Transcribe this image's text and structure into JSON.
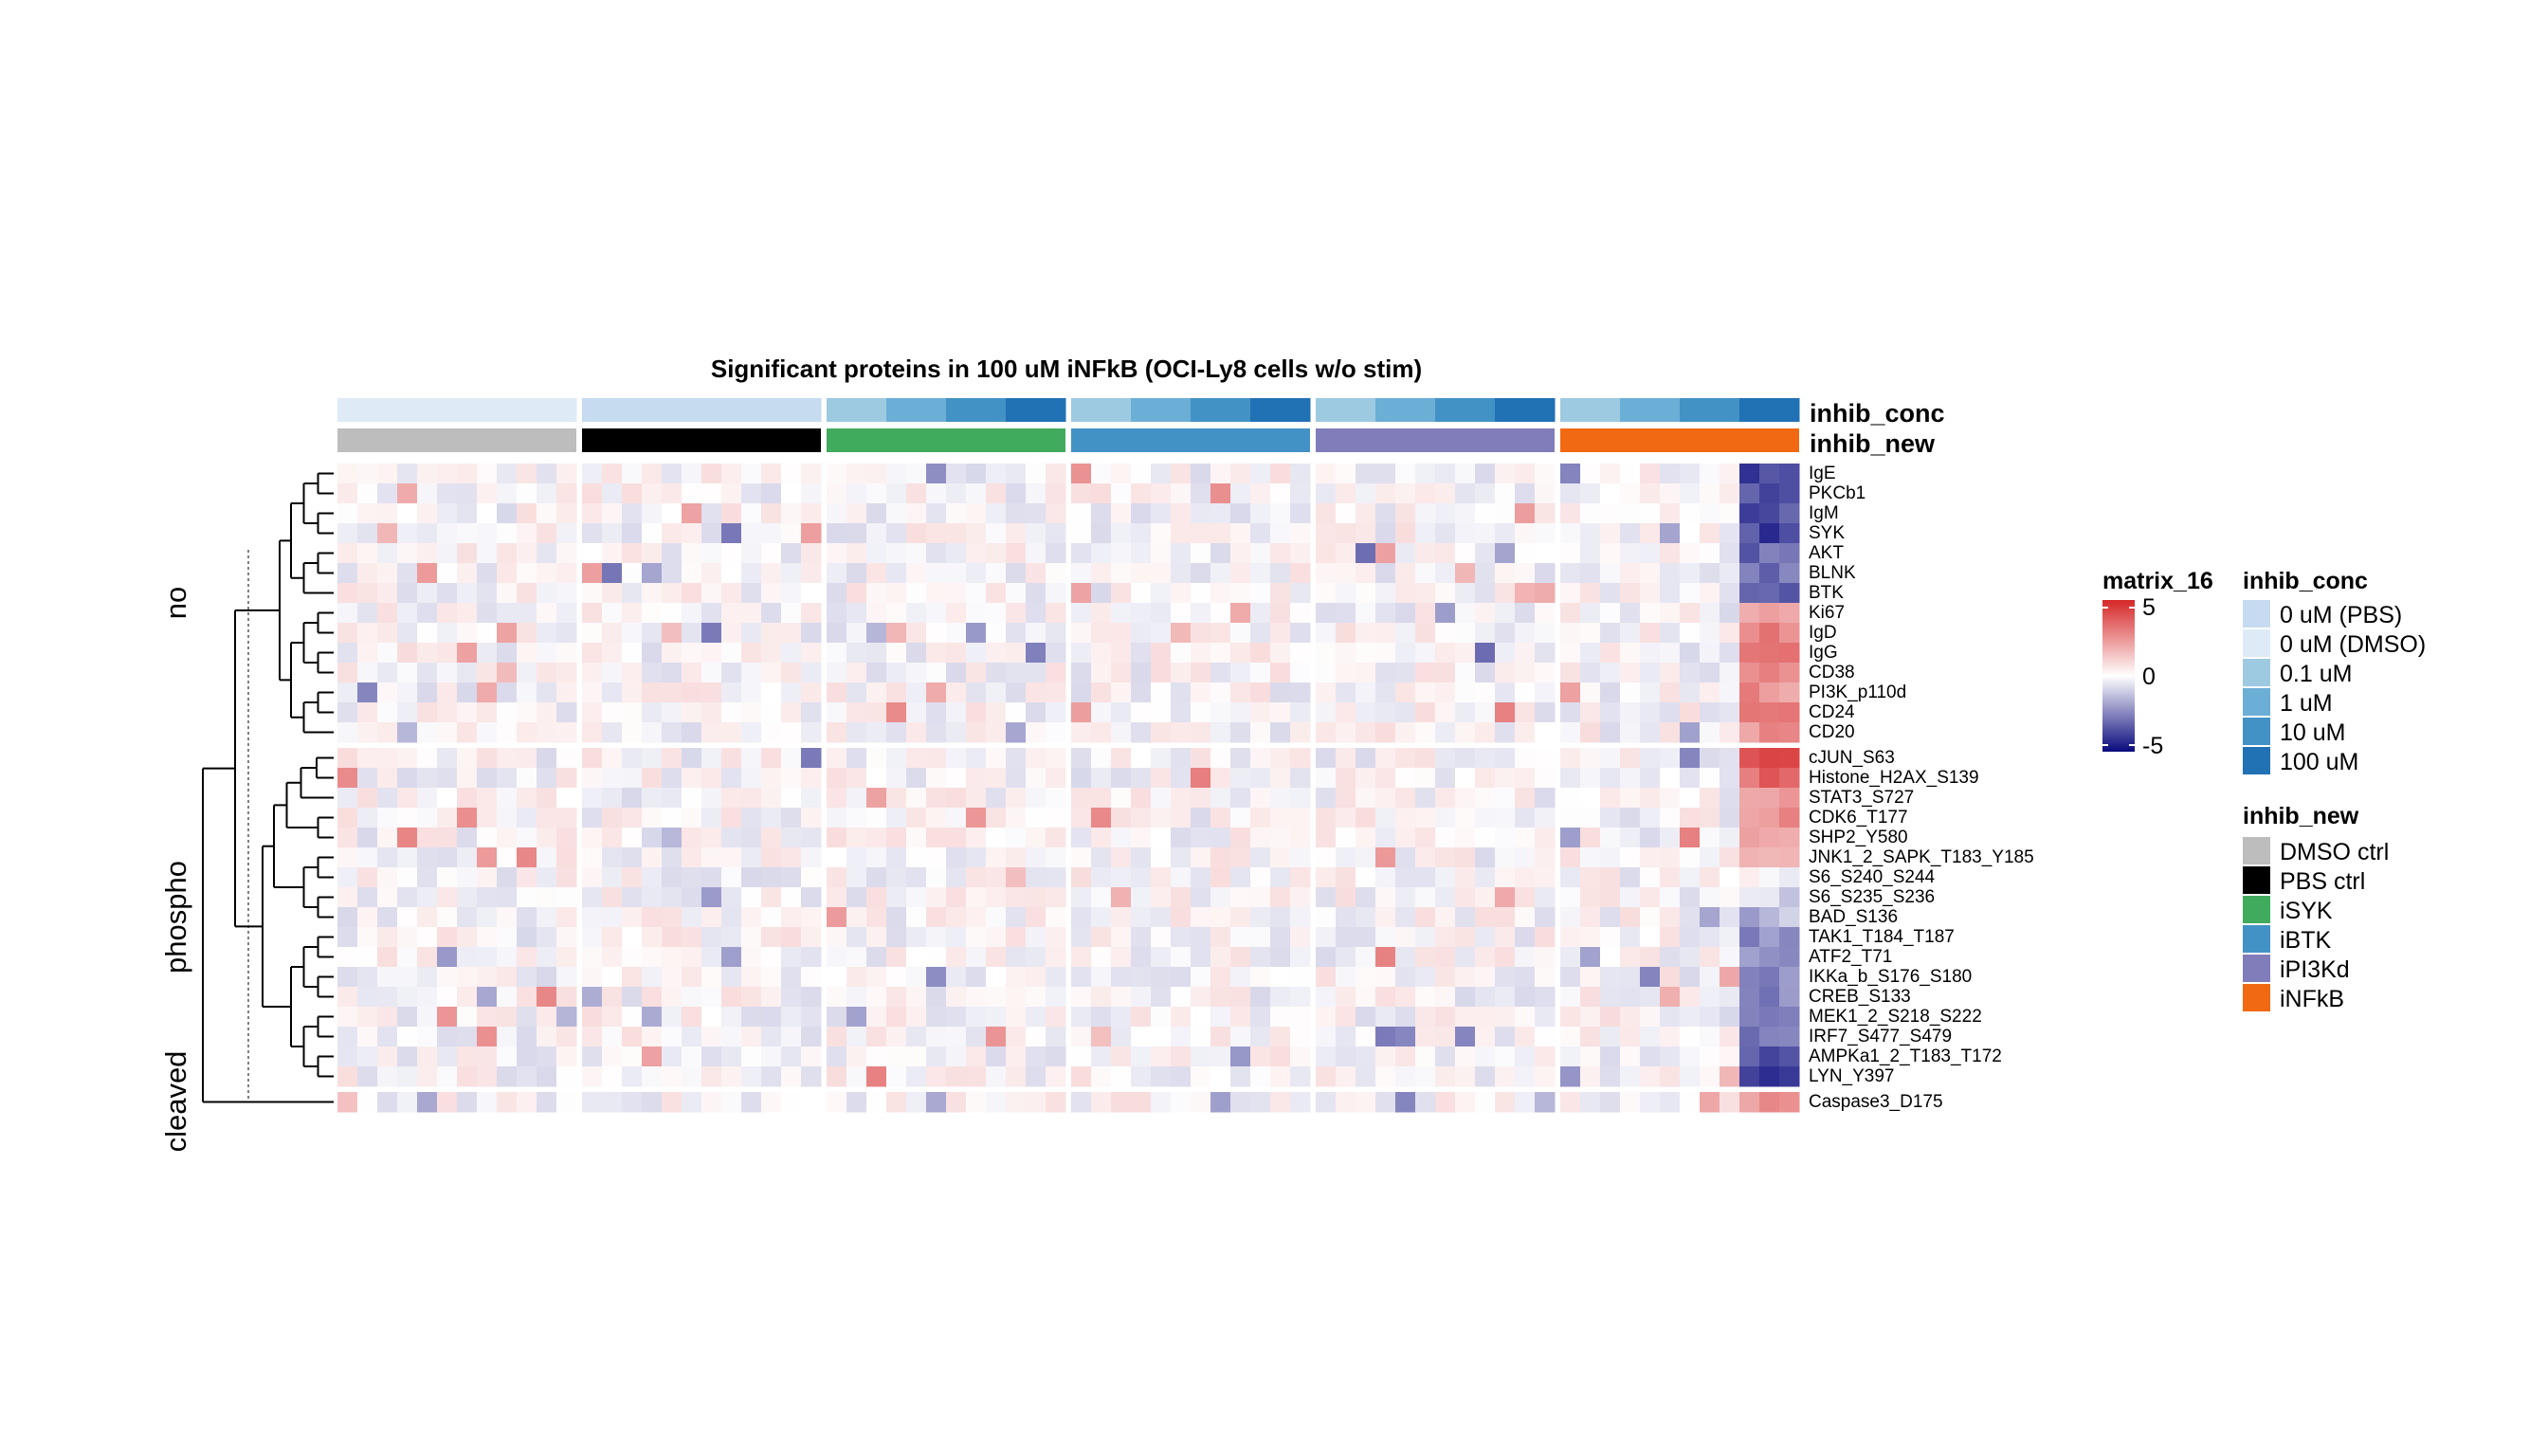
{
  "chart_data": {
    "type": "heatmap",
    "title": "Significant proteins in 100 uM iNFkB (OCI-Ly8 cells w/o stim)",
    "row_groups": [
      {
        "label": "no",
        "rows": [
          "IgE",
          "PKCb1",
          "IgM",
          "SYK",
          "AKT",
          "BLNK",
          "BTK",
          "Ki67",
          "IgD",
          "IgG",
          "CD38",
          "PI3K_p110d",
          "CD24",
          "CD20"
        ]
      },
      {
        "label": "phospho",
        "rows": [
          "cJUN_S63",
          "Histone_H2AX_S139",
          "STAT3_S727",
          "CDK6_T177",
          "SHP2_Y580",
          "JNK1_2_SAPK_T183_Y185",
          "S6_S240_S244",
          "S6_S235_S236",
          "BAD_S136",
          "TAK1_T184_T187",
          "ATF2_T71",
          "IKKa_b_S176_S180",
          "CREB_S133",
          "MEK1_2_S218_S222",
          "IRF7_S477_S479",
          "AMPKa1_2_T183_T172",
          "LYN_Y397"
        ]
      },
      {
        "label": "cleaved",
        "rows": [
          "Caspase3_D175"
        ]
      }
    ],
    "column_groups": [
      {
        "inhib_new": "DMSO ctrl",
        "inhib_conc": [
          "0 uM (DMSO)",
          "0 uM (DMSO)",
          "0 uM (DMSO)",
          "0 uM (DMSO)"
        ]
      },
      {
        "inhib_new": "PBS ctrl",
        "inhib_conc": [
          "0 uM (PBS)",
          "0 uM (PBS)",
          "0 uM (PBS)",
          "0 uM (PBS)"
        ]
      },
      {
        "inhib_new": "iSYK",
        "inhib_conc": [
          "0.1 uM",
          "1 uM",
          "10 uM",
          "100 uM"
        ]
      },
      {
        "inhib_new": "iBTK",
        "inhib_conc": [
          "0.1 uM",
          "1 uM",
          "10 uM",
          "100 uM"
        ]
      },
      {
        "inhib_new": "iPI3Kd",
        "inhib_conc": [
          "0.1 uM",
          "1 uM",
          "10 uM",
          "100 uM"
        ]
      },
      {
        "inhib_new": "iNFkB",
        "inhib_conc": [
          "0.1 uM",
          "1 uM",
          "10 uM",
          "100 uM"
        ]
      }
    ],
    "cells_per_condition": 3,
    "value_range": [
      -5,
      5
    ],
    "hundred_uM_iNFkB_block": {
      "IgE": -4,
      "PKCb1": -3.5,
      "IgM": -3.5,
      "SYK": -3.8,
      "AKT": -3,
      "BLNK": -3,
      "BTK": -3,
      "Ki67": 2.5,
      "IgD": 3,
      "IgG": 3.5,
      "CD38": 3,
      "PI3K_p110d": 2.5,
      "CD24": 3,
      "CD20": 2.5,
      "cJUN_S63": 4,
      "Histone_H2AX_S139": 3.5,
      "STAT3_S727": 2.5,
      "CDK6_T177": 2.5,
      "SHP2_Y580": 2.5,
      "JNK1_2_SAPK_T183_Y185": 2,
      "S6_S240_S244": 0,
      "S6_S235_S236": -1,
      "BAD_S136": -1.5,
      "TAK1_T184_T187": -2.5,
      "ATF2_T71": -2.5,
      "IKKa_b_S176_S180": -2.5,
      "CREB_S133": -2.5,
      "MEK1_2_S218_S222": -3,
      "IRF7_S477_S479": -3,
      "AMPKa1_2_T183_T172": -3.5,
      "LYN_Y397": -4,
      "Caspase3_D175": 2.5
    }
  },
  "legend": {
    "matrix": {
      "title": "matrix_16",
      "ticks": [
        "5",
        "0",
        "-5"
      ],
      "colors": {
        "high": "#d62728",
        "mid": "#ffffff",
        "low": "#0a0a7e"
      }
    },
    "inhib_conc": {
      "title": "inhib_conc",
      "items": [
        {
          "label": "0 uM (PBS)",
          "color": "#c6dbef"
        },
        {
          "label": "0 uM (DMSO)",
          "color": "#deebf7"
        },
        {
          "label": "0.1 uM",
          "color": "#9ecae1"
        },
        {
          "label": "1 uM",
          "color": "#6baed6"
        },
        {
          "label": "10 uM",
          "color": "#4292c6"
        },
        {
          "label": "100 uM",
          "color": "#2171b5"
        }
      ]
    },
    "inhib_new": {
      "title": "inhib_new",
      "items": [
        {
          "label": "DMSO ctrl",
          "color": "#bdbdbd"
        },
        {
          "label": "PBS ctrl",
          "color": "#000000"
        },
        {
          "label": "iSYK",
          "color": "#41ab5d"
        },
        {
          "label": "iBTK",
          "color": "#4292c6"
        },
        {
          "label": "iPI3Kd",
          "color": "#807dba"
        },
        {
          "label": "iNFkB",
          "color": "#f16913"
        }
      ]
    }
  }
}
